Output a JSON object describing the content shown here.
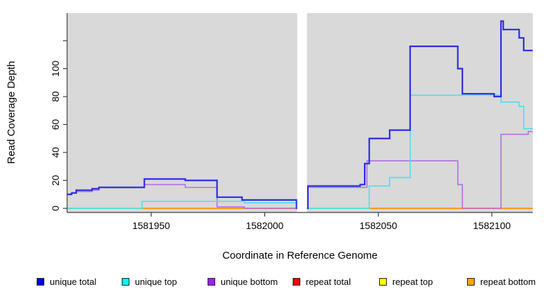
{
  "figure": {
    "x_axis_title": "Coordinate in Reference Genome",
    "y_axis_title": "Read Coverage Depth"
  },
  "chart_data": {
    "type": "line",
    "subtype": "step",
    "title": "",
    "xlabel": "Coordinate in Reference Genome",
    "ylabel": "Read Coverage Depth",
    "xlim": [
      1581913,
      1582118
    ],
    "ylim": [
      0,
      140
    ],
    "grid": false,
    "panel_bg": "#d9d9d9",
    "legend_position": "bottom-horizontal",
    "x_ticks": [
      {
        "v": 1581950,
        "label": "1581950"
      },
      {
        "v": 1582000,
        "label": "1582000"
      },
      {
        "v": 1582050,
        "label": "1582050"
      },
      {
        "v": 1582100,
        "label": "1582100"
      }
    ],
    "y_ticks": [
      {
        "v": 0,
        "label": "0"
      },
      {
        "v": 20,
        "label": "20"
      },
      {
        "v": 40,
        "label": "40"
      },
      {
        "v": 60,
        "label": "60"
      },
      {
        "v": 80,
        "label": "80"
      },
      {
        "v": 100,
        "label": "100"
      },
      {
        "v": 120,
        "label": ""
      }
    ],
    "gap_region": {
      "from": 1582014.3,
      "to": 1582018.6,
      "note": "white masked column, no data drawn"
    },
    "series": [
      {
        "name": "repeat total",
        "id": "repeat-total",
        "line_color": "#e81010",
        "legend_color": "#ff0000",
        "width": 1.5,
        "points": [
          [
            1581913,
            0
          ]
        ]
      },
      {
        "name": "repeat top",
        "id": "repeat-top",
        "line_color": "#f2f200",
        "legend_color": "#ffff00",
        "width": 1.5,
        "points": [
          [
            1581913,
            0
          ]
        ]
      },
      {
        "name": "repeat bottom",
        "id": "repeat-bottom",
        "line_color": "#ff9818",
        "legend_color": "#ffa500",
        "width": 2,
        "points": [
          [
            1581913,
            0
          ]
        ]
      },
      {
        "name": "unique bottom",
        "id": "unique-bottom",
        "line_color": "#b06ee2",
        "legend_color": "#a020f0",
        "width": 1.6,
        "points": [
          [
            1581913,
            10
          ],
          [
            1581915,
            11
          ],
          [
            1581917,
            12
          ],
          [
            1581924,
            13
          ],
          [
            1581927,
            15
          ],
          [
            1581947,
            17
          ],
          [
            1581965,
            15
          ],
          [
            1581979,
            1
          ],
          [
            1581991,
            0
          ],
          [
            1582019,
            15
          ],
          [
            1582045,
            34
          ],
          [
            1582085,
            17
          ],
          [
            1582087,
            0
          ],
          [
            1582104,
            53
          ],
          [
            1582116,
            55
          ]
        ]
      },
      {
        "name": "unique top",
        "id": "unique-top",
        "line_color": "#49e0ea",
        "legend_color": "#00ffff",
        "width": 1.6,
        "points": [
          [
            1581913,
            0
          ],
          [
            1581946,
            5
          ],
          [
            1581991,
            4
          ],
          [
            1582014,
            0
          ],
          [
            1582046,
            16
          ],
          [
            1582055,
            22
          ],
          [
            1582064,
            81
          ],
          [
            1582104,
            76
          ],
          [
            1582112,
            73
          ],
          [
            1582114,
            57
          ]
        ]
      },
      {
        "name": "unique total",
        "id": "unique-total",
        "line_color": "#2b2be0",
        "legend_color": "#0000ee",
        "width": 2.2,
        "points": [
          [
            1581913,
            10
          ],
          [
            1581915,
            11
          ],
          [
            1581917,
            13
          ],
          [
            1581924,
            14
          ],
          [
            1581927,
            15
          ],
          [
            1581947,
            21
          ],
          [
            1581965,
            20
          ],
          [
            1581979,
            8
          ],
          [
            1581990,
            6
          ],
          [
            1582014,
            0
          ],
          [
            1582019,
            16
          ],
          [
            1582042,
            17
          ],
          [
            1582044,
            32
          ],
          [
            1582046,
            50
          ],
          [
            1582055,
            56
          ],
          [
            1582064,
            116
          ],
          [
            1582085,
            100
          ],
          [
            1582087,
            82
          ],
          [
            1582101,
            80
          ],
          [
            1582104,
            134
          ],
          [
            1582105,
            128
          ],
          [
            1582112,
            122
          ],
          [
            1582114,
            113
          ]
        ]
      }
    ],
    "zero_line_overlap_segments": [
      {
        "from": 1581913,
        "to": 1581946,
        "color": "#90e2a8"
      },
      {
        "from": 1582019,
        "to": 1582046,
        "color": "#90e2a8"
      }
    ],
    "legend_order": [
      "unique total",
      "unique top",
      "unique bottom",
      "repeat total",
      "repeat top",
      "repeat bottom"
    ]
  }
}
